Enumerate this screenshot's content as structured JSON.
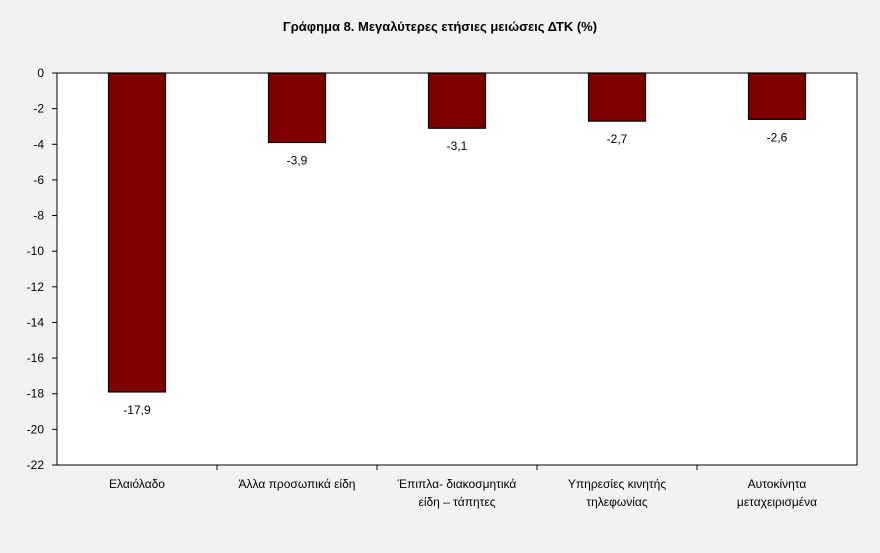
{
  "chart_data": {
    "type": "bar",
    "title": "Γράφημα 8. Μεγαλύτερες ετήσιες μειώσεις ΔΤΚ (%)",
    "xlabel": "",
    "ylabel": "",
    "categories": [
      [
        "Ελαιόλαδο"
      ],
      [
        "Άλλα προσωπικά είδη"
      ],
      [
        "Έπιπλα- διακοσμητικά",
        "είδη – τάπητες"
      ],
      [
        "Υπηρεσίες κινητής",
        "τηλεφωνίας"
      ],
      [
        "Αυτοκίνητα",
        "μεταχειρισμένα"
      ]
    ],
    "values": [
      -17.9,
      -3.9,
      -3.1,
      -2.7,
      -2.6
    ],
    "data_labels": [
      "-17,9",
      "-3,9",
      "-3,1",
      "-2,7",
      "-2,6"
    ],
    "ylim": [
      -22,
      0
    ],
    "yticks": [
      0,
      -2,
      -4,
      -6,
      -8,
      -10,
      -12,
      -14,
      -16,
      -18,
      -20,
      -22
    ],
    "grid": false,
    "legend": "none",
    "colors": {
      "bar": "#800000",
      "bar_stroke": "#000000",
      "plot_bg": "#ffffff",
      "page_bg": "#f2f2f2"
    }
  }
}
